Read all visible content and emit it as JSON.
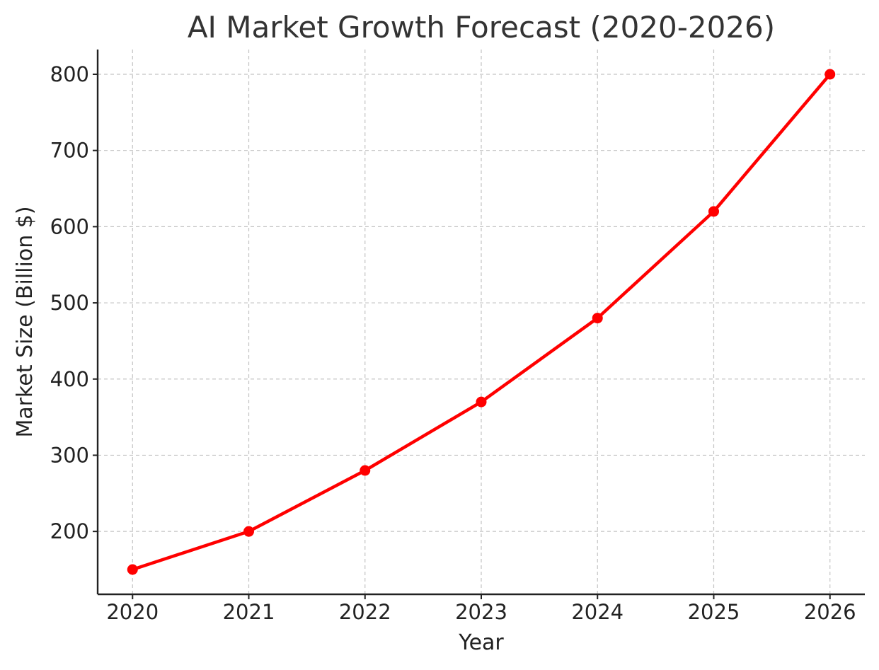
{
  "chart_data": {
    "type": "line",
    "title": "AI Market Growth Forecast (2020-2026)",
    "xlabel": "Year",
    "ylabel": "Market Size (Billion $)",
    "categories": [
      "2020",
      "2021",
      "2022",
      "2023",
      "2024",
      "2025",
      "2026"
    ],
    "x": [
      2020,
      2021,
      2022,
      2023,
      2024,
      2025,
      2026
    ],
    "series": [
      {
        "values": [
          150,
          200,
          280,
          370,
          480,
          620,
          800
        ],
        "color": "#ff0000",
        "marker": "circle"
      }
    ],
    "yticks": [
      200,
      300,
      400,
      500,
      600,
      700,
      800
    ],
    "ylim": [
      117.5,
      832.5
    ],
    "xlim": [
      2019.7,
      2026.3
    ],
    "grid": true,
    "grid_style": "dashed",
    "legend": "none"
  }
}
